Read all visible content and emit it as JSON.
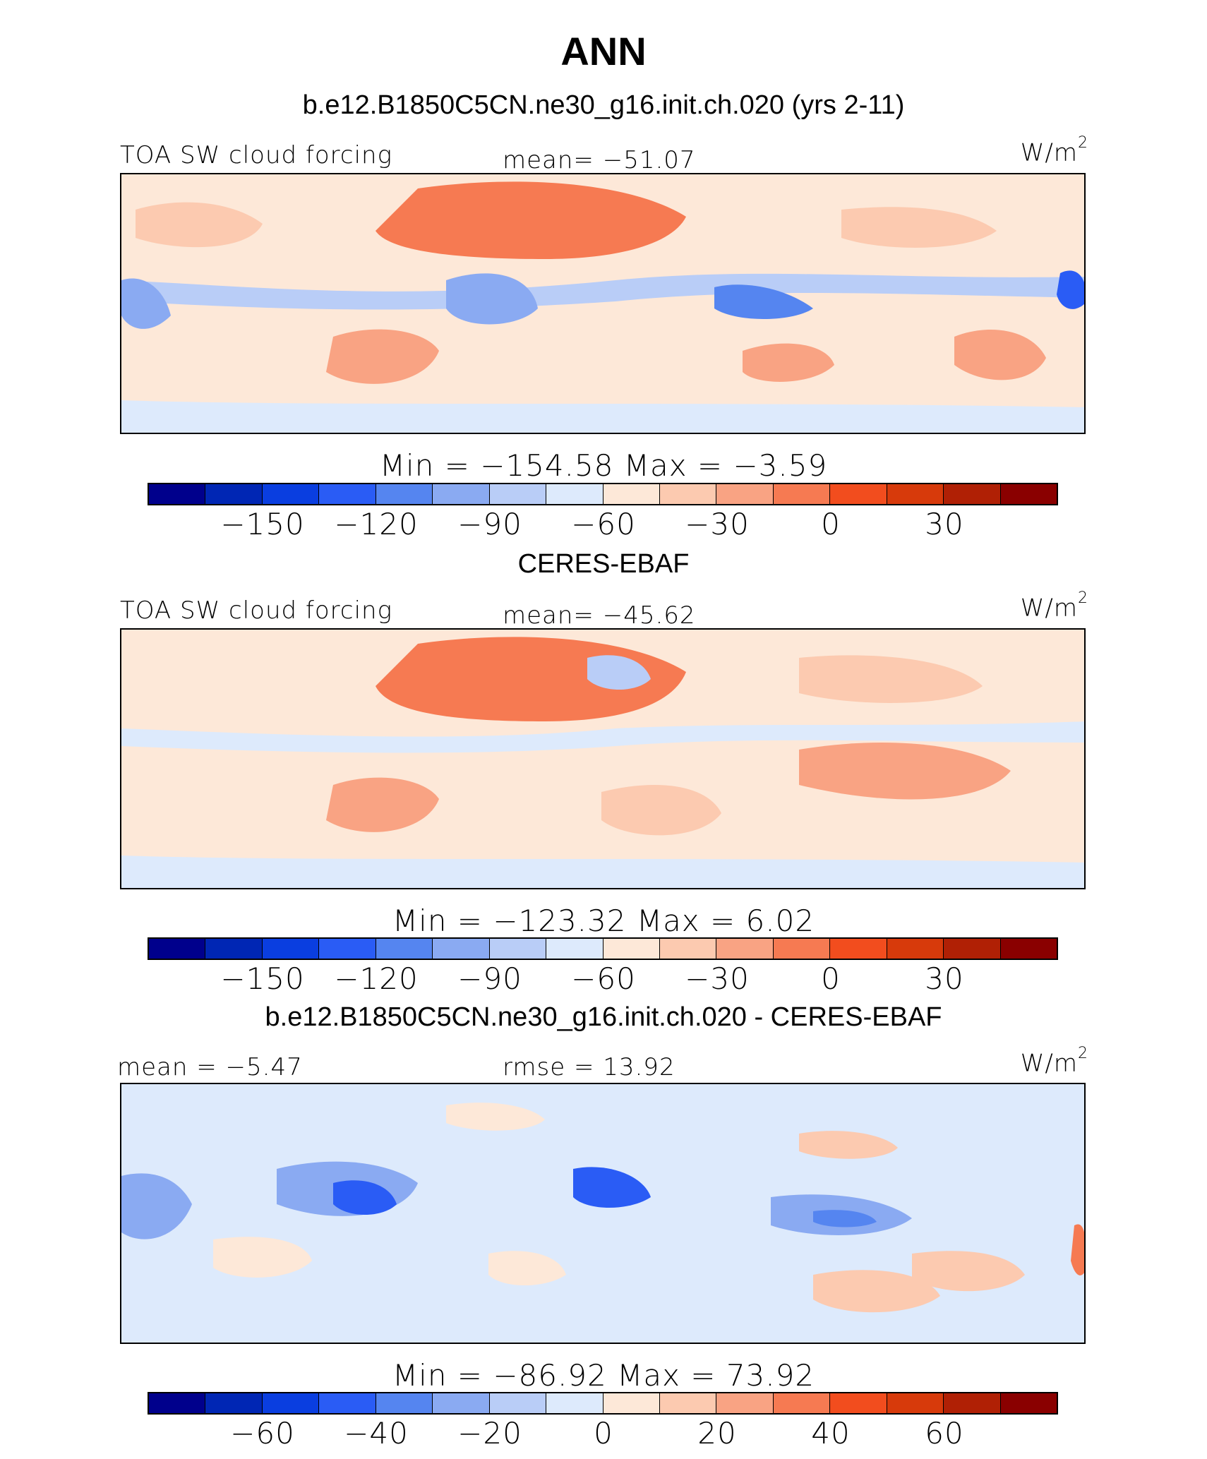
{
  "title": "ANN",
  "panels": [
    {
      "heading": "b.e12.B1850C5CN.ne30_g16.init.ch.020 (yrs 2-11)",
      "left_label": "TOA SW cloud forcing",
      "center_label": "mean=  −51.07",
      "units": "W/m",
      "units_sup": "2",
      "minmax": "Min  =  −154.58  Max  =   −3.59",
      "ticks": [
        "−150",
        "−120",
        "−90",
        "−60",
        "−30",
        "0",
        "30"
      ],
      "stats": {
        "mean": -51.07,
        "min": -154.58,
        "max": -3.59
      }
    },
    {
      "heading": "CERES-EBAF",
      "left_label": "TOA SW cloud forcing",
      "center_label": "mean=  −45.62",
      "units": "W/m",
      "units_sup": "2",
      "minmax": "Min  =  −123.32  Max  =     6.02",
      "ticks": [
        "−150",
        "−120",
        "−90",
        "−60",
        "−30",
        "0",
        "30"
      ],
      "stats": {
        "mean": -45.62,
        "min": -123.32,
        "max": 6.02
      }
    },
    {
      "heading": "b.e12.B1850C5CN.ne30_g16.init.ch.020 - CERES-EBAF",
      "left_label": "mean  =   −5.47",
      "center_label": "rmse  =   13.92",
      "units": "W/m",
      "units_sup": "2",
      "minmax": "Min  =  −86.92  Max  =   73.92",
      "ticks": [
        "−60",
        "−40",
        "−20",
        "0",
        "20",
        "40",
        "60"
      ],
      "stats": {
        "mean": -5.47,
        "rmse": 13.92,
        "min": -86.92,
        "max": 73.92
      }
    }
  ],
  "colorbar_colors": [
    "#00008c",
    "#0026b4",
    "#0a3ee0",
    "#2a5cf5",
    "#5585f0",
    "#8aaaf2",
    "#b9cdf7",
    "#ddeafc",
    "#fde8d8",
    "#fccab0",
    "#f9a383",
    "#f67a52",
    "#f24d1e",
    "#d73a0b",
    "#b02005",
    "#8a0000"
  ]
}
